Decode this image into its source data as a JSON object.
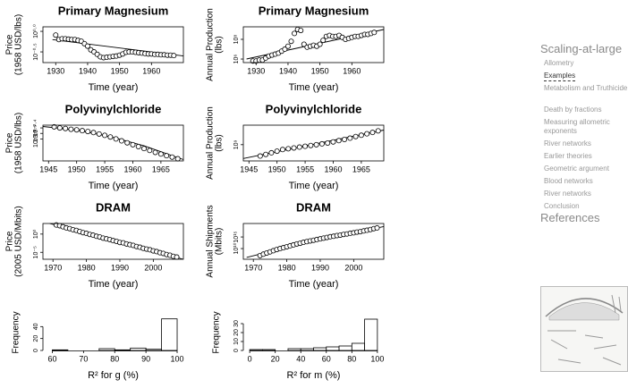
{
  "chart_data": [
    {
      "type": "scatter",
      "title": "Primary Magnesium",
      "xlabel": "Time (year)",
      "ylabel": [
        "Price",
        "(1958 USD/lbs)"
      ],
      "xlim": [
        1926,
        1970
      ],
      "xticks": [
        1930,
        1940,
        1950,
        1960
      ],
      "ylim": [
        -0.76,
        0.11
      ],
      "yticks": [
        {
          "value": 0,
          "label": "10⁰·⁰"
        },
        {
          "value": -0.5,
          "label": "10⁻⁰·⁵"
        }
      ],
      "points": {
        "x": [
          1930,
          1931,
          1932,
          1933,
          1934,
          1935,
          1936,
          1937,
          1938,
          1939,
          1940,
          1941,
          1942,
          1943,
          1944,
          1945,
          1946,
          1947,
          1948,
          1949,
          1950,
          1951,
          1952,
          1953,
          1954,
          1955,
          1956,
          1957,
          1958,
          1959,
          1960,
          1961,
          1962,
          1963,
          1964,
          1965,
          1966,
          1967
        ],
        "y": [
          -0.09,
          -0.2,
          -0.18,
          -0.18,
          -0.19,
          -0.2,
          -0.2,
          -0.22,
          -0.24,
          -0.3,
          -0.36,
          -0.45,
          -0.5,
          -0.56,
          -0.62,
          -0.64,
          -0.63,
          -0.62,
          -0.61,
          -0.6,
          -0.58,
          -0.55,
          -0.51,
          -0.5,
          -0.5,
          -0.51,
          -0.52,
          -0.53,
          -0.54,
          -0.55,
          -0.55,
          -0.56,
          -0.56,
          -0.57,
          -0.57,
          -0.58,
          -0.58,
          -0.59
        ]
      },
      "fit": {
        "x": [
          1929,
          1970
        ],
        "y": [
          -0.2,
          -0.6
        ]
      }
    },
    {
      "type": "scatter",
      "title": "Primary Magnesium",
      "xlabel": "Time (year)",
      "ylabel": [
        "Annual Production",
        "(lbs)"
      ],
      "xlim": [
        1926,
        1970
      ],
      "xticks": [
        1930,
        1940,
        1950,
        1960
      ],
      "ylim": [
        5.64,
        9.27
      ],
      "yticks": [
        {
          "value": 8,
          "label": "10⁸"
        },
        {
          "value": 6,
          "label": "10⁶"
        }
      ],
      "points": {
        "x": [
          1929,
          1930,
          1931,
          1932,
          1933,
          1934,
          1935,
          1936,
          1937,
          1938,
          1939,
          1940,
          1941,
          1942,
          1943,
          1944,
          1945,
          1946,
          1947,
          1948,
          1949,
          1950,
          1951,
          1952,
          1953,
          1954,
          1955,
          1956,
          1957,
          1958,
          1959,
          1960,
          1961,
          1962,
          1963,
          1964,
          1965,
          1966,
          1967
        ],
        "y": [
          5.8,
          5.8,
          5.9,
          5.9,
          6.1,
          6.3,
          6.4,
          6.5,
          6.6,
          6.8,
          7.0,
          7.3,
          7.8,
          8.6,
          9.0,
          8.9,
          7.5,
          7.2,
          7.3,
          7.4,
          7.3,
          7.5,
          7.9,
          8.3,
          8.4,
          8.3,
          8.3,
          8.4,
          8.2,
          8.0,
          8.1,
          8.2,
          8.3,
          8.3,
          8.4,
          8.5,
          8.5,
          8.6,
          8.7
        ]
      },
      "fit": {
        "x": [
          1927,
          1970
        ],
        "y": [
          6.0,
          9.0
        ]
      }
    },
    {
      "type": "scatter",
      "title": "Polyvinylchloride",
      "xlabel": "Time (year)",
      "ylabel": [
        "Price",
        "(1958 USD/lbs)"
      ],
      "xlim": [
        1944,
        1969
      ],
      "xticks": [
        1945,
        1950,
        1955,
        1960,
        1965
      ],
      "ylim": [
        -3.6,
        -2.3
      ],
      "yticks": [
        {
          "value": -2.8,
          "label": "10⁻²·⁸"
        },
        {
          "value": -2.6,
          "label": "10⁻²·⁶"
        },
        {
          "value": -2.4,
          "label": "10⁻²·⁴"
        }
      ],
      "points": {
        "x": [
          1946,
          1947,
          1948,
          1949,
          1950,
          1951,
          1952,
          1953,
          1954,
          1955,
          1956,
          1957,
          1958,
          1959,
          1960,
          1961,
          1962,
          1963,
          1964,
          1965,
          1966,
          1967,
          1968
        ],
        "y": [
          -2.36,
          -2.4,
          -2.42,
          -2.45,
          -2.47,
          -2.5,
          -2.53,
          -2.57,
          -2.62,
          -2.67,
          -2.73,
          -2.8,
          -2.87,
          -2.94,
          -3.01,
          -3.08,
          -3.15,
          -3.22,
          -3.29,
          -3.35,
          -3.41,
          -3.46,
          -3.52
        ]
      },
      "fit": {
        "x": [
          1944,
          1950,
          1956,
          1962,
          1969
        ],
        "y": [
          -2.35,
          -2.48,
          -2.72,
          -3.05,
          -3.55
        ]
      }
    },
    {
      "type": "scatter",
      "title": "Polyvinylchloride",
      "xlabel": "Time (year)",
      "ylabel": [
        "Annual Production",
        "(lbs)"
      ],
      "xlim": [
        1944,
        1969
      ],
      "xticks": [
        1945,
        1950,
        1955,
        1960,
        1965
      ],
      "ylim": [
        8.0,
        10.2
      ],
      "yticks": [
        {
          "value": 9,
          "label": "10⁹"
        }
      ],
      "points": {
        "x": [
          1947,
          1948,
          1949,
          1950,
          1951,
          1952,
          1953,
          1954,
          1955,
          1956,
          1957,
          1958,
          1959,
          1960,
          1961,
          1962,
          1963,
          1964,
          1965,
          1966,
          1967,
          1968
        ],
        "y": [
          8.3,
          8.4,
          8.5,
          8.6,
          8.7,
          8.75,
          8.8,
          8.85,
          8.9,
          8.95,
          9.0,
          9.05,
          9.1,
          9.17,
          9.25,
          9.32,
          9.4,
          9.5,
          9.58,
          9.67,
          9.75,
          9.85
        ]
      },
      "fit": {
        "x": [
          1944,
          1969
        ],
        "y": [
          8.15,
          9.9
        ]
      }
    },
    {
      "type": "scatter",
      "title": "DRAM",
      "xlabel": "Time (year)",
      "ylabel": [
        "Price",
        "(2005 USD/Mbits)"
      ],
      "xlim": [
        1967,
        2009
      ],
      "xticks": [
        1970,
        1980,
        1990,
        2000
      ],
      "ylim": [
        -6.9,
        2.9
      ],
      "yticks": [
        {
          "value": 0,
          "label": "10⁰"
        },
        {
          "value": -5,
          "label": "10⁻⁵"
        }
      ],
      "points": {
        "x": [
          1971,
          1972,
          1973,
          1974,
          1975,
          1976,
          1977,
          1978,
          1979,
          1980,
          1981,
          1982,
          1983,
          1984,
          1985,
          1986,
          1987,
          1988,
          1989,
          1990,
          1991,
          1992,
          1993,
          1994,
          1995,
          1996,
          1997,
          1998,
          1999,
          2000,
          2001,
          2002,
          2003,
          2004,
          2005,
          2006,
          2007
        ],
        "y": [
          2.5,
          2.3,
          2.0,
          1.7,
          1.5,
          1.2,
          1.0,
          0.7,
          0.4,
          0.2,
          -0.1,
          -0.3,
          -0.6,
          -0.8,
          -1.1,
          -1.3,
          -1.5,
          -1.8,
          -2.0,
          -2.3,
          -2.4,
          -2.7,
          -2.9,
          -3.1,
          -3.4,
          -3.6,
          -3.9,
          -4.1,
          -4.3,
          -4.6,
          -4.8,
          -5.1,
          -5.3,
          -5.6,
          -5.8,
          -6.1,
          -6.3
        ]
      },
      "fit": {
        "x": [
          1969,
          2009
        ],
        "y": [
          2.9,
          -6.9
        ]
      }
    },
    {
      "type": "scatter",
      "title": "DRAM",
      "xlabel": "Time (year)",
      "ylabel": [
        "Annual Shipments",
        "(Mbits)"
      ],
      "xlim": [
        1967,
        2009
      ],
      "xticks": [
        1970,
        1980,
        1990,
        2000
      ],
      "ylim": [
        5.4,
        20.8
      ],
      "yticks": [
        {
          "value": 15,
          "label": "10¹⁵"
        },
        {
          "value": 10,
          "label": "10¹⁰"
        }
      ],
      "points": {
        "x": [
          1972,
          1973,
          1974,
          1975,
          1976,
          1977,
          1978,
          1979,
          1980,
          1981,
          1982,
          1983,
          1984,
          1985,
          1986,
          1987,
          1988,
          1989,
          1990,
          1991,
          1992,
          1993,
          1994,
          1995,
          1996,
          1997,
          1998,
          1999,
          2000,
          2001,
          2002,
          2003,
          2004,
          2005,
          2006,
          2007
        ],
        "y": [
          7.0,
          7.6,
          8.1,
          8.6,
          9.1,
          9.6,
          10.0,
          10.4,
          10.8,
          11.2,
          11.6,
          12.0,
          12.3,
          12.7,
          13.0,
          13.3,
          13.6,
          13.9,
          14.2,
          14.5,
          14.8,
          15.1,
          15.3,
          15.6,
          15.8,
          16.1,
          16.3,
          16.6,
          16.8,
          17.1,
          17.3,
          17.6,
          17.9,
          18.2,
          18.6,
          18.9
        ]
      },
      "fit": {
        "x": [
          1968,
          1980,
          1995,
          2009
        ],
        "y": [
          6.2,
          10.5,
          15.3,
          19.5
        ]
      }
    },
    {
      "type": "histogram",
      "xlabel": "R² for g (%)",
      "ylabel": [
        "Frequency"
      ],
      "xlim": [
        57,
        102
      ],
      "xticks": [
        60,
        70,
        80,
        90,
        100
      ],
      "ylim": [
        0,
        60
      ],
      "yticks": [
        0,
        20,
        40
      ],
      "bins": [
        60,
        65,
        70,
        75,
        80,
        85,
        90,
        95,
        100
      ],
      "counts": [
        1,
        0,
        0,
        3,
        1,
        4,
        2,
        53
      ]
    },
    {
      "type": "histogram",
      "xlabel": "R² for m (%)",
      "ylabel": [
        "Frequency"
      ],
      "xlim": [
        -5,
        105
      ],
      "xticks": [
        0,
        20,
        40,
        60,
        80,
        100
      ],
      "ylim": [
        0,
        40
      ],
      "yticks": [
        0,
        10,
        20,
        30
      ],
      "bins": [
        0,
        10,
        20,
        30,
        40,
        50,
        60,
        70,
        80,
        90,
        100
      ],
      "counts": [
        1,
        1,
        0,
        2,
        2,
        3,
        4,
        5,
        8,
        35
      ]
    }
  ],
  "nav": {
    "heading": "Scaling-at-large",
    "active": 1,
    "items": [
      "Allometry",
      "Examples",
      "Metabolism and Truthicide",
      "Death by fractions",
      "Measuring allometric exponents",
      "River networks",
      "Earlier theories",
      "Geometric argument",
      "Blood networks",
      "River networks",
      "Conclusion"
    ],
    "references": "References"
  }
}
